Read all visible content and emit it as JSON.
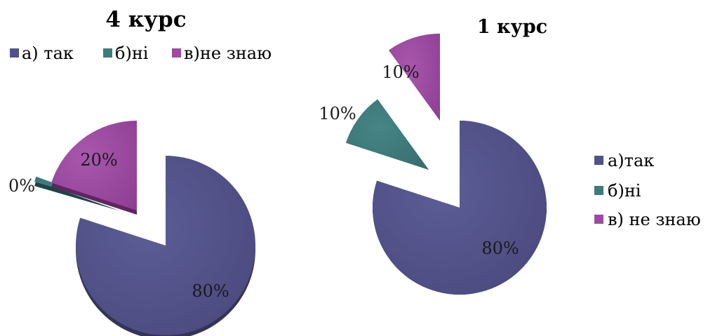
{
  "chart_data": [
    {
      "type": "pie",
      "title": "4 курс",
      "categories": [
        "а) так",
        "б)ні",
        "в)не знаю"
      ],
      "values": [
        80,
        0,
        20
      ],
      "data_labels": [
        "80%",
        "0%",
        "20%"
      ],
      "exploded": true,
      "legend_position": "top",
      "colors": [
        "#52528a",
        "#3e7b7b",
        "#9e4aa2"
      ]
    },
    {
      "type": "pie",
      "title": "1 курс",
      "categories": [
        "а)так",
        "б)ні",
        "в) не знаю"
      ],
      "values": [
        80,
        10,
        10
      ],
      "data_labels": [
        "80%",
        "10%",
        "10%"
      ],
      "exploded": true,
      "legend_position": "right",
      "colors": [
        "#52528a",
        "#3e7b7b",
        "#9e4aa2"
      ]
    }
  ]
}
